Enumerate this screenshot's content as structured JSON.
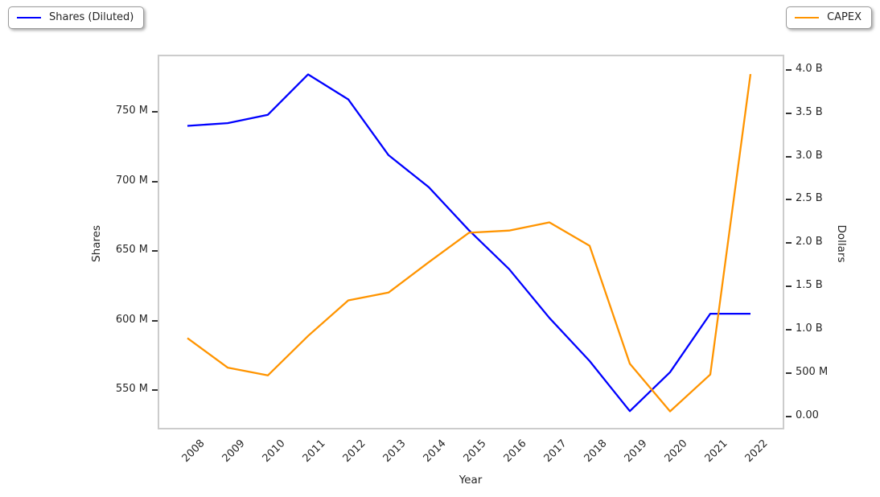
{
  "legend": {
    "shares": {
      "label": "Shares (Diluted)",
      "color": "#0000ff"
    },
    "capex": {
      "label": "CAPEX",
      "color": "#ff9400"
    }
  },
  "axes": {
    "x_title": "Year",
    "left_title": "Shares",
    "right_title": "Dollars"
  },
  "chart_data": {
    "type": "line",
    "title": "",
    "x": [
      "2008",
      "2009",
      "2010",
      "2011",
      "2012",
      "2013",
      "2014",
      "2015",
      "2016",
      "2017",
      "2018",
      "2019",
      "2020",
      "2021",
      "2022"
    ],
    "series": [
      {
        "name": "Shares (Diluted)",
        "axis": "left",
        "color": "#0000ff",
        "unit": "shares, millions",
        "values_millions": [
          740,
          742,
          748,
          777,
          759,
          719,
          696,
          665,
          637,
          602,
          571,
          535,
          563,
          605,
          605
        ]
      },
      {
        "name": "CAPEX",
        "axis": "right",
        "color": "#ff9400",
        "unit": "dollars, millions",
        "values_millions": [
          905,
          565,
          475,
          930,
          1340,
          1430,
          1780,
          2120,
          2145,
          2240,
          1970,
          610,
          60,
          485,
          3950
        ]
      }
    ],
    "left_axis": {
      "title": "Shares",
      "tick_labels": [
        "550 M",
        "600 M",
        "650 M",
        "700 M",
        "750 M"
      ],
      "tick_values": [
        550,
        600,
        650,
        700,
        750
      ],
      "ylim": [
        523,
        790
      ]
    },
    "right_axis": {
      "title": "Dollars",
      "tick_labels": [
        "0.00",
        "500 M",
        "1.0 B",
        "1.5 B",
        "2.0 B",
        "2.5 B",
        "3.0 B",
        "3.5 B",
        "4.0 B"
      ],
      "tick_values": [
        0,
        500,
        1000,
        1500,
        2000,
        2500,
        3000,
        3500,
        4000
      ],
      "ylim": [
        -130,
        4155
      ]
    },
    "x_axis": {
      "title": "Year"
    },
    "legend_position": "top-left (shares), top-right (capex)",
    "grid": false
  }
}
